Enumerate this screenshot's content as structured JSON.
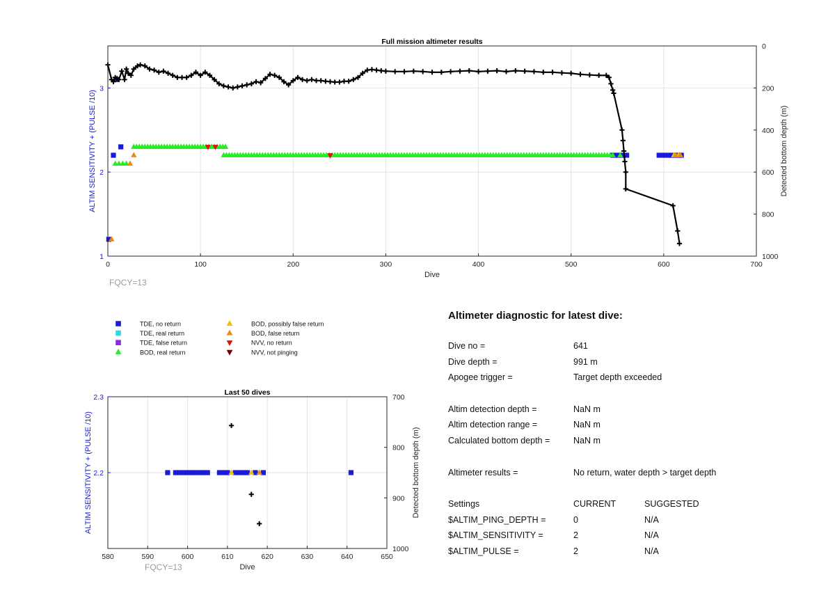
{
  "chart_data": [
    {
      "type": "scatter",
      "title": "Full mission altimeter results",
      "xlabel": "Dive",
      "ylabel": "ALTIM SENSITIVITY + (PULSE /10)",
      "ylabel_right": "Detected bottom depth (m)",
      "xlim": [
        0,
        700
      ],
      "ylim": [
        1,
        3.5
      ],
      "ylim_right": [
        0,
        1000
      ],
      "y_right_reversed": true,
      "xticks": [
        0,
        100,
        200,
        300,
        400,
        500,
        600,
        700
      ],
      "yticks": [
        1,
        2,
        3
      ],
      "yticks_right": [
        0,
        200,
        400,
        600,
        800,
        1000
      ],
      "grid": true,
      "footnote": "FQCY=13",
      "series": [
        {
          "name": "TDE, no return",
          "marker": "square",
          "color": "#1a1adb",
          "points": [
            [
              1,
              1.2
            ],
            [
              6,
              2.2
            ],
            [
              9,
              3.1
            ],
            [
              14,
              2.3
            ],
            [
              545,
              2.2
            ],
            [
              550,
              2.2
            ],
            [
              555,
              2.2
            ],
            [
              560,
              2.2
            ],
            [
              595,
              2.2
            ],
            [
              600,
              2.2
            ],
            [
              605,
              2.2
            ],
            [
              608,
              2.2
            ],
            [
              612,
              2.2
            ],
            [
              616,
              2.2
            ],
            [
              619,
              2.2
            ]
          ]
        },
        {
          "name": "BOD, real return",
          "marker": "triangle-up",
          "color": "#22ee22",
          "segments": [
            [
              28,
              128,
              2.3
            ],
            [
              125,
              545,
              2.2
            ]
          ],
          "points": [
            [
              8,
              2.1
            ],
            [
              12,
              2.1
            ],
            [
              16,
              2.1
            ],
            [
              20,
              2.1
            ],
            [
              553,
              2.2
            ]
          ]
        },
        {
          "name": "BOD, possibly false return",
          "marker": "triangle-up",
          "color": "#f2c200",
          "points": [
            [
              611,
              2.2
            ],
            [
              616,
              2.2
            ]
          ]
        },
        {
          "name": "BOD, false return",
          "marker": "triangle-up",
          "color": "#f08a00",
          "points": [
            [
              4,
              1.2
            ],
            [
              24,
              2.1
            ],
            [
              28,
              2.2
            ],
            [
              613,
              2.2
            ],
            [
              618,
              2.2
            ]
          ]
        },
        {
          "name": "NVV, no return",
          "marker": "triangle-down",
          "color": "#e01010",
          "points": [
            [
              108,
              2.3
            ],
            [
              116,
              2.3
            ],
            [
              240,
              2.2
            ]
          ]
        }
      ],
      "bottom_depth": {
        "marker": "plus",
        "color": "#000000",
        "points": [
          [
            0,
            90
          ],
          [
            4,
            160
          ],
          [
            6,
            170
          ],
          [
            8,
            150
          ],
          [
            10,
            155
          ],
          [
            12,
            160
          ],
          [
            15,
            120
          ],
          [
            18,
            160
          ],
          [
            20,
            110
          ],
          [
            22,
            130
          ],
          [
            25,
            140
          ],
          [
            28,
            110
          ],
          [
            32,
            95
          ],
          [
            35,
            90
          ],
          [
            40,
            95
          ],
          [
            45,
            110
          ],
          [
            50,
            115
          ],
          [
            55,
            125
          ],
          [
            60,
            120
          ],
          [
            65,
            130
          ],
          [
            70,
            140
          ],
          [
            75,
            150
          ],
          [
            80,
            150
          ],
          [
            85,
            150
          ],
          [
            90,
            140
          ],
          [
            95,
            125
          ],
          [
            100,
            140
          ],
          [
            105,
            125
          ],
          [
            110,
            140
          ],
          [
            115,
            160
          ],
          [
            120,
            180
          ],
          [
            125,
            190
          ],
          [
            130,
            195
          ],
          [
            135,
            200
          ],
          [
            140,
            195
          ],
          [
            145,
            190
          ],
          [
            150,
            185
          ],
          [
            155,
            180
          ],
          [
            160,
            170
          ],
          [
            165,
            175
          ],
          [
            170,
            155
          ],
          [
            175,
            135
          ],
          [
            180,
            140
          ],
          [
            185,
            150
          ],
          [
            190,
            170
          ],
          [
            195,
            185
          ],
          [
            200,
            165
          ],
          [
            205,
            150
          ],
          [
            210,
            160
          ],
          [
            215,
            165
          ],
          [
            220,
            160
          ],
          [
            225,
            165
          ],
          [
            230,
            165
          ],
          [
            235,
            168
          ],
          [
            240,
            170
          ],
          [
            245,
            172
          ],
          [
            250,
            172
          ],
          [
            255,
            168
          ],
          [
            260,
            168
          ],
          [
            265,
            160
          ],
          [
            270,
            150
          ],
          [
            275,
            130
          ],
          [
            280,
            115
          ],
          [
            285,
            112
          ],
          [
            290,
            115
          ],
          [
            295,
            118
          ],
          [
            300,
            120
          ],
          [
            310,
            122
          ],
          [
            320,
            122
          ],
          [
            330,
            120
          ],
          [
            340,
            122
          ],
          [
            350,
            125
          ],
          [
            360,
            125
          ],
          [
            370,
            122
          ],
          [
            380,
            120
          ],
          [
            390,
            118
          ],
          [
            400,
            122
          ],
          [
            410,
            120
          ],
          [
            420,
            118
          ],
          [
            430,
            122
          ],
          [
            440,
            118
          ],
          [
            450,
            120
          ],
          [
            460,
            122
          ],
          [
            470,
            125
          ],
          [
            480,
            125
          ],
          [
            490,
            128
          ],
          [
            500,
            130
          ],
          [
            510,
            135
          ],
          [
            520,
            138
          ],
          [
            530,
            140
          ],
          [
            538,
            140
          ],
          [
            541,
            150
          ],
          [
            543,
            180
          ],
          [
            545,
            210
          ],
          [
            546,
            225
          ],
          [
            555,
            400
          ],
          [
            556,
            450
          ],
          [
            557,
            500
          ],
          [
            558,
            550
          ],
          [
            559,
            600
          ],
          [
            559,
            680
          ],
          [
            610,
            760
          ],
          [
            615,
            880
          ],
          [
            617,
            940
          ]
        ]
      }
    },
    {
      "type": "scatter",
      "title": "Last 50 dives",
      "xlabel": "Dive",
      "ylabel": "ALTIM SENSITIVITY + (PULSE /10)",
      "ylabel_right": "Detected bottom depth (m)",
      "xlim": [
        580,
        650
      ],
      "ylim": [
        2.1,
        2.3
      ],
      "ylim_right": [
        700,
        1000
      ],
      "y_right_reversed": true,
      "xticks": [
        580,
        590,
        600,
        610,
        620,
        630,
        640,
        650
      ],
      "yticks": [
        2.2,
        2.3
      ],
      "yticks_right": [
        700,
        800,
        900,
        1000
      ],
      "grid": true,
      "footnote": "FQCY=13",
      "series": [
        {
          "name": "TDE, no return",
          "marker": "square",
          "color": "#1a1adb",
          "points": [
            [
              595,
              2.2
            ],
            [
              597,
              2.2
            ],
            [
              598,
              2.2
            ],
            [
              599,
              2.2
            ],
            [
              600,
              2.2
            ],
            [
              601,
              2.2
            ],
            [
              602,
              2.2
            ],
            [
              603,
              2.2
            ],
            [
              604,
              2.2
            ],
            [
              605,
              2.2
            ],
            [
              608,
              2.2
            ],
            [
              609,
              2.2
            ],
            [
              610,
              2.2
            ],
            [
              612,
              2.2
            ],
            [
              613,
              2.2
            ],
            [
              614,
              2.2
            ],
            [
              615,
              2.2
            ],
            [
              617,
              2.2
            ],
            [
              619,
              2.2
            ],
            [
              641,
              2.2
            ]
          ]
        },
        {
          "name": "BOD, possibly false return",
          "marker": "triangle-up",
          "color": "#f2c200",
          "points": [
            [
              611,
              2.2
            ],
            [
              616,
              2.2
            ]
          ]
        },
        {
          "name": "BOD, false return",
          "marker": "triangle-up",
          "color": "#f08a00",
          "points": [
            [
              618,
              2.2
            ]
          ]
        }
      ],
      "bottom_depth": {
        "marker": "plus",
        "color": "#000000",
        "points": [
          [
            611,
            757
          ],
          [
            616,
            893
          ],
          [
            618,
            951
          ]
        ]
      }
    }
  ],
  "legend": [
    [
      {
        "label": "TDE, no return",
        "marker": "square",
        "color": "#1a1adb"
      },
      {
        "label": "TDE, real return",
        "marker": "square",
        "color": "#22dde8"
      },
      {
        "label": "TDE, false return",
        "marker": "square",
        "color": "#8a2be2"
      },
      {
        "label": "BOD, real return",
        "marker": "triangle-up",
        "color": "#22ee22"
      }
    ],
    [
      {
        "label": "BOD, possibly false return",
        "marker": "triangle-up",
        "color": "#f2c200"
      },
      {
        "label": "BOD, false return",
        "marker": "triangle-up",
        "color": "#f08a00"
      },
      {
        "label": "NVV, no return",
        "marker": "triangle-down",
        "color": "#e01010"
      },
      {
        "label": "NVV, not pinging",
        "marker": "triangle-down",
        "color": "#7a0000"
      }
    ]
  ],
  "diagnostic": {
    "title": "Altimeter diagnostic for latest dive:",
    "dive_no_label": "Dive no =",
    "dive_no": "641",
    "dive_depth_label": "Dive depth =",
    "dive_depth": "991 m",
    "apogee_label": "Apogee trigger =",
    "apogee": "Target depth exceeded",
    "det_depth_label": "Altim detection depth =",
    "det_depth": "NaN m",
    "det_range_label": "Altim detection range =",
    "det_range": "NaN m",
    "calc_bottom_label": "Calculated bottom depth =",
    "calc_bottom": "NaN m",
    "results_label": "Altimeter results =",
    "results": "No return, water depth > target depth",
    "settings_label": "Settings",
    "current_label": "CURRENT",
    "suggested_label": "SUGGESTED",
    "ping_label": "$ALTIM_PING_DEPTH =",
    "ping_current": "0",
    "ping_suggested": "N/A",
    "sens_label": "$ALTIM_SENSITIVITY =",
    "sens_current": "2",
    "sens_suggested": "N/A",
    "pulse_label": "$ALTIM_PULSE =",
    "pulse_current": "2",
    "pulse_suggested": "N/A"
  },
  "colors": {
    "axis_left": "#1a1adb",
    "grid": "#e2e2e2",
    "footnote": "#9a9a9a"
  }
}
